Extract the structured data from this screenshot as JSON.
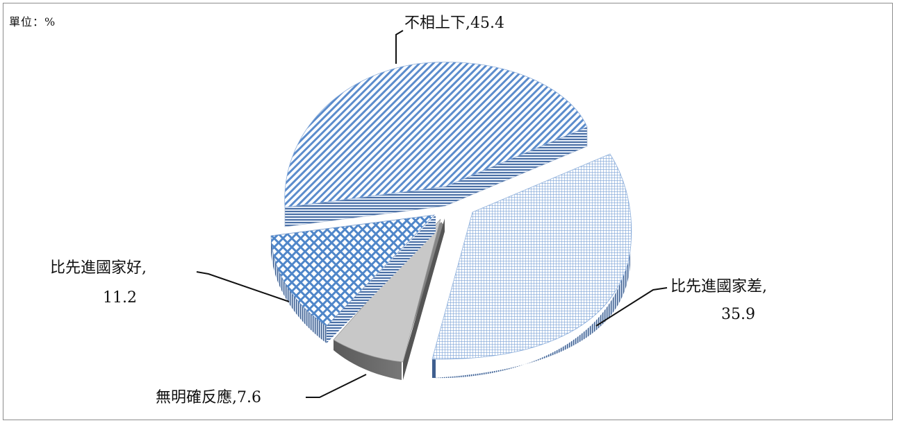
{
  "unit_label": "單位：%",
  "chart_data": {
    "type": "pie",
    "exploded": true,
    "three_d": true,
    "slices": [
      {
        "label": "不相上下",
        "value": 45.4
      },
      {
        "label": "比先進國家差",
        "value": 35.9
      },
      {
        "label": "無明確反應",
        "value": 7.6
      },
      {
        "label": "比先進國家好",
        "value": 11.2
      }
    ],
    "colors": {
      "hatch_line": "#5b8ccc",
      "hatch_bg": "#ffffff",
      "grid_line": "#7aa2d6",
      "gray_top": "#c8c8c8",
      "gray_side": "#6e6e6e",
      "side_dark": "#3f5f8f"
    }
  }
}
